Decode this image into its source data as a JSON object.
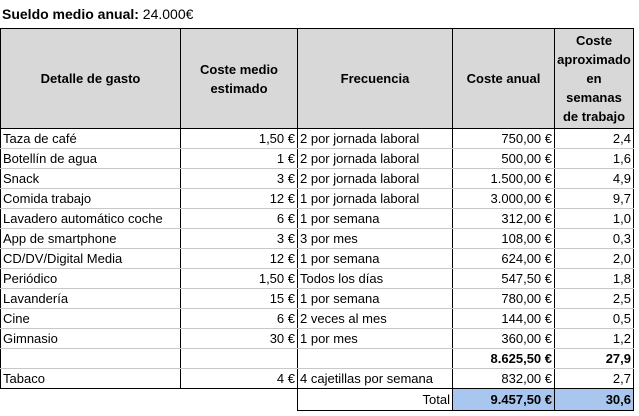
{
  "salary": {
    "label": "Sueldo medio anual:",
    "value": "24.000€"
  },
  "headers": [
    "Detalle de gasto",
    "Coste medio estimado",
    "Frecuencia",
    "Coste anual",
    "Coste aproximado en semanas de trabajo"
  ],
  "rows": [
    [
      "Taza de café",
      "1,50 €",
      "2 por jornada laboral",
      "750,00 €",
      "2,4"
    ],
    [
      "Botellín de agua",
      "1 €",
      "2 por jornada laboral",
      "500,00 €",
      "1,6"
    ],
    [
      "Snack",
      "3 €",
      "2 por jornada laboral",
      "1.500,00 €",
      "4,9"
    ],
    [
      "Comida trabajo",
      "12 €",
      "1 por jornada laboral",
      "3.000,00 €",
      "9,7"
    ],
    [
      "Lavadero automático coche",
      "6 €",
      "1 por semana",
      "312,00 €",
      "1,0"
    ],
    [
      "App de smartphone",
      "3 €",
      "3 por mes",
      "108,00 €",
      "0,3"
    ],
    [
      "CD/DV/Digital Media",
      "12 €",
      "1 por semana",
      "624,00 €",
      "2,0"
    ],
    [
      "Periódico",
      "1,50 €",
      "Todos los días",
      "547,50 €",
      "1,8"
    ],
    [
      "Lavandería",
      "15 €",
      "1 por semana",
      "780,00 €",
      "2,5"
    ],
    [
      "Cine",
      "6 €",
      "2 veces al mes",
      "144,00 €",
      "0,5"
    ],
    [
      "Gimnasio",
      "30 €",
      "1 por mes",
      "360,00 €",
      "1,2"
    ]
  ],
  "subtotal": {
    "annual": "8.625,50 €",
    "weeks": "27,9"
  },
  "tobacco": [
    "Tabaco",
    "4 €",
    "4 cajetillas por semana",
    "832,00 €",
    "2,7"
  ],
  "total": {
    "label": "Total",
    "annual": "9.457,50 €",
    "weeks": "30,6"
  },
  "colors": {
    "header_bg": "#d8d8d8",
    "total_highlight": "#a9c6ee"
  }
}
